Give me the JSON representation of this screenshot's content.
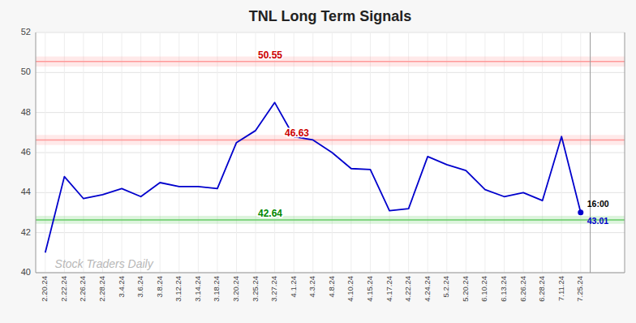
{
  "chart_data": {
    "type": "line",
    "title": "TNL Long Term Signals",
    "watermark": "Stock Traders Daily",
    "categories": [
      "2.20.24",
      "2.22.24",
      "2.26.24",
      "2.28.24",
      "3.4.24",
      "3.6.24",
      "3.8.24",
      "3.12.24",
      "3.14.24",
      "3.18.24",
      "3.20.24",
      "3.25.24",
      "3.27.24",
      "4.1.24",
      "4.3.24",
      "4.8.24",
      "4.10.24",
      "4.15.24",
      "4.17.24",
      "4.22.24",
      "4.24.24",
      "5.2.24",
      "5.20.24",
      "6.10.24",
      "6.13.24",
      "6.26.24",
      "6.28.24",
      "7.11.24",
      "7.25.24"
    ],
    "values": [
      41.0,
      44.8,
      43.7,
      43.9,
      44.2,
      43.8,
      44.5,
      44.3,
      44.3,
      44.2,
      46.5,
      47.1,
      48.5,
      46.8,
      46.63,
      46.0,
      45.2,
      45.15,
      43.1,
      43.2,
      45.8,
      45.4,
      45.1,
      44.15,
      43.8,
      44.0,
      43.6,
      46.8,
      43.01
    ],
    "color": "#0000cc",
    "reference_lines": [
      {
        "value": 50.55,
        "band": [
          50.3,
          50.8
        ],
        "color": "#ff9999",
        "label_color": "#cc0000"
      },
      {
        "value": 46.63,
        "band": [
          46.38,
          46.88
        ],
        "color": "#ff9999",
        "label_color": "#cc0000"
      },
      {
        "value": 42.64,
        "band": [
          42.44,
          42.84
        ],
        "color": "#66cc66",
        "label_color": "#008800"
      }
    ],
    "annotations": [
      {
        "text": "16:00",
        "color": "#000000"
      },
      {
        "text": "43.01",
        "color": "#0000cc"
      }
    ],
    "ylim": [
      40,
      52
    ],
    "yticks": [
      40,
      42,
      44,
      46,
      48,
      50,
      52
    ],
    "grid": true
  }
}
